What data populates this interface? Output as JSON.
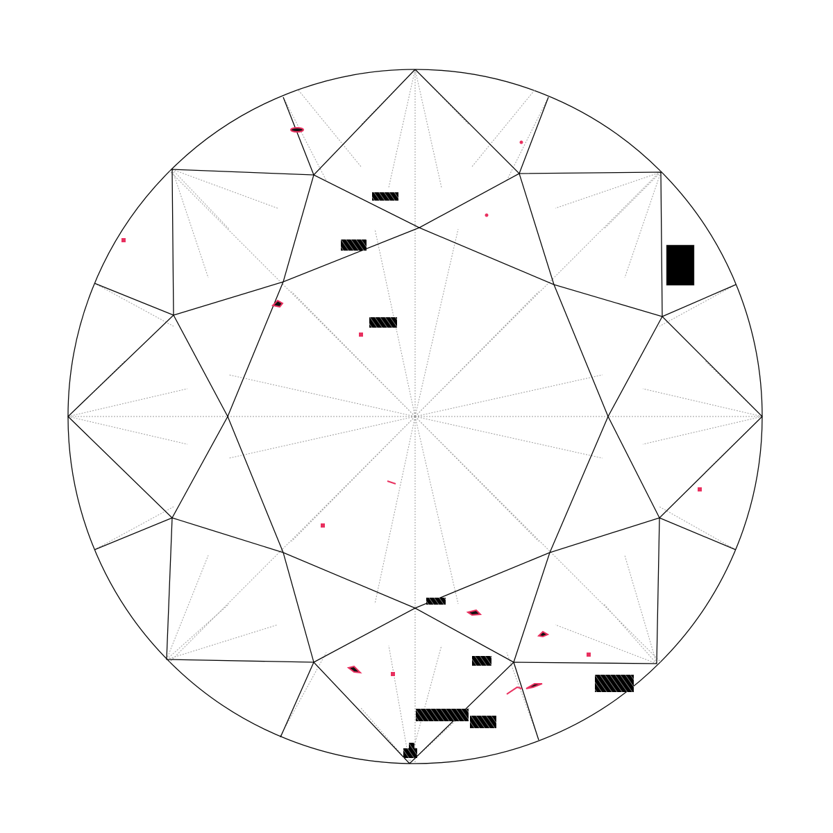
{
  "diagram": {
    "type": "diamond-plot",
    "shape": "round-brilliant",
    "view": "crown",
    "colors": {
      "outline": "#000000",
      "facet_lines": "#9a9a9a",
      "inclusion_red": "#e8305f",
      "inclusion_dark": "#111111",
      "background": "#ffffff"
    },
    "symbols": {
      "red_spot": "pinpoint-icon",
      "red_outlined_dark": "crystal-icon",
      "black_hatched_rect": "cloud-icon"
    }
  }
}
